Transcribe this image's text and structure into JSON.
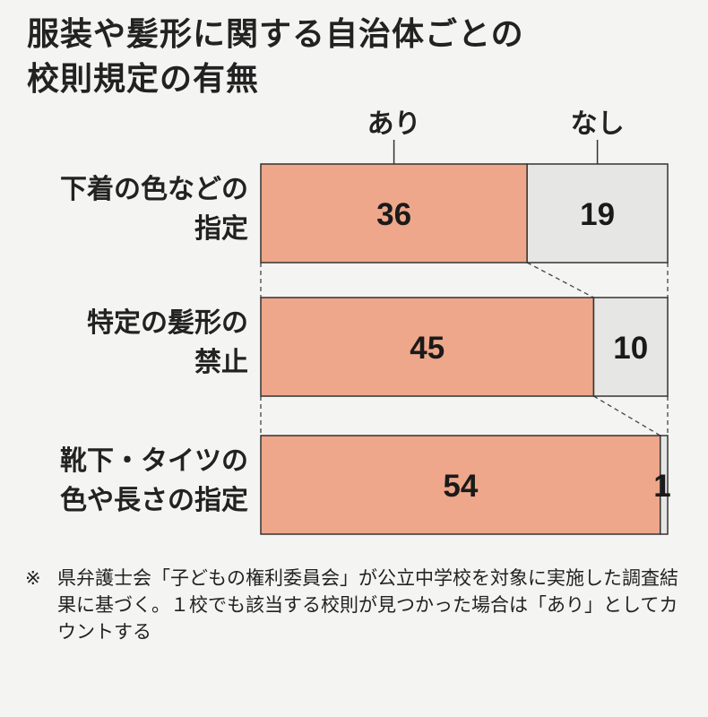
{
  "title_lines": [
    "服装や髪形に関する自治体ごとの",
    "校則規定の有無"
  ],
  "chart_data": {
    "type": "bar",
    "orientation": "horizontal",
    "stacked": true,
    "categories": [
      [
        "下着の色などの",
        "指定"
      ],
      [
        "特定の髪形の",
        "禁止"
      ],
      [
        "靴下・タイツの",
        "色や長さの指定"
      ]
    ],
    "series": [
      {
        "name": "あり",
        "values": [
          36,
          45,
          54
        ],
        "color": "#eea78a"
      },
      {
        "name": "なし",
        "values": [
          19,
          10,
          1
        ],
        "color": "#e6e6e4"
      }
    ],
    "xlim": [
      0,
      55
    ],
    "legend": "top",
    "grid": false,
    "connector_lines": true
  },
  "note": {
    "mark": "※",
    "text": "県弁護士会「子どもの権利委員会」が公立中学校を対象に実施した調査結果に基づく。１校でも該当する校則が見つかった場合は「あり」としてカウントする"
  }
}
